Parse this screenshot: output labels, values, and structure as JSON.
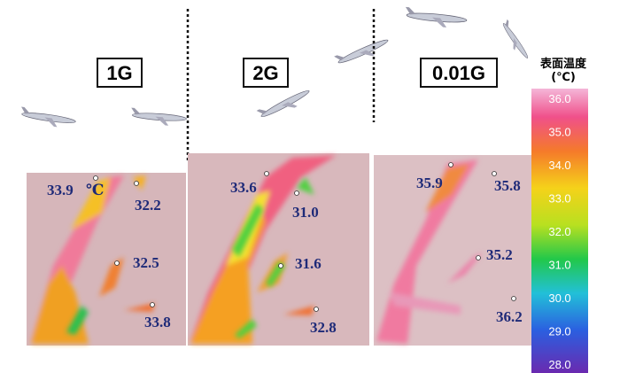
{
  "colorbar": {
    "title": "表面温度",
    "unit": "(℃)",
    "ticks": [
      "36.0",
      "35.0",
      "34.0",
      "33.0",
      "32.0",
      "31.0",
      "30.0",
      "29.0",
      "28.0"
    ]
  },
  "panels": [
    {
      "label": "1G",
      "readings": [
        "33.9",
        "32.2",
        "32.5",
        "33.8"
      ],
      "unit": "℃"
    },
    {
      "label": "2G",
      "readings": [
        "33.6",
        "31.0",
        "31.6",
        "32.8"
      ]
    },
    {
      "label": "0.01G",
      "readings": [
        "35.9",
        "35.8",
        "35.2",
        "36.2"
      ]
    }
  ]
}
